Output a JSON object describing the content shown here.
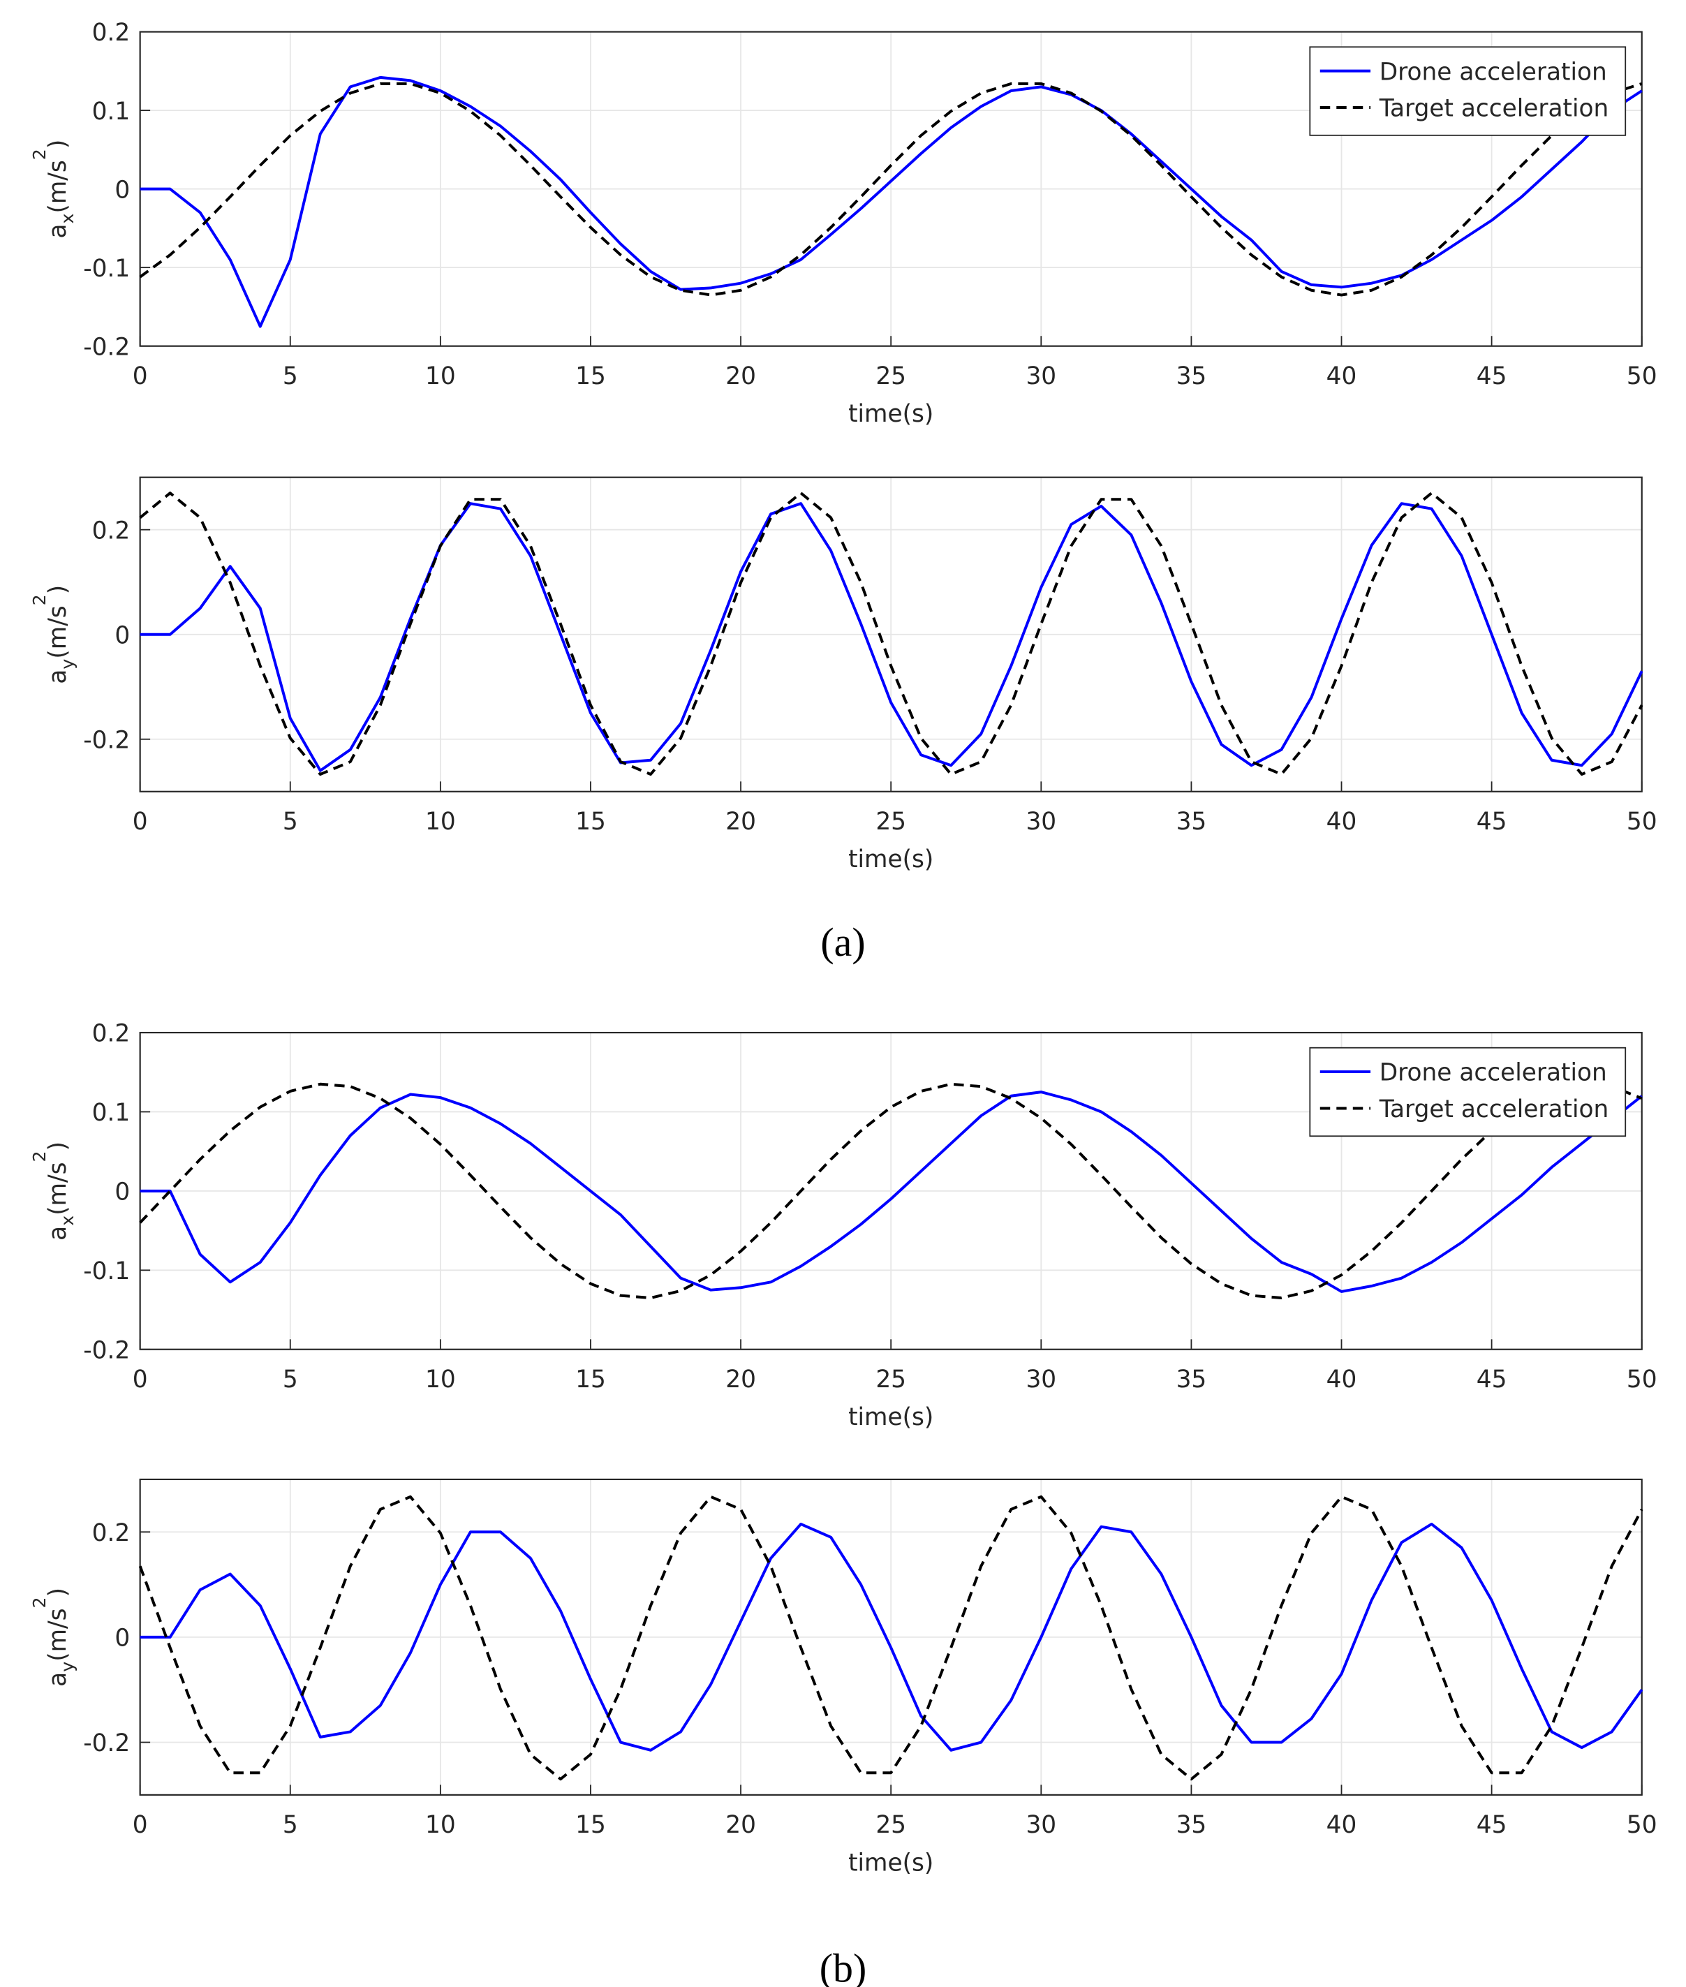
{
  "captions": [
    "(a)",
    "(b)"
  ],
  "chart_data": [
    {
      "type": "line",
      "xlabel": "time(s)",
      "ylabel": [
        {
          "text": "a"
        },
        {
          "text": "x",
          "shift": "sub"
        },
        {
          "text": "(m/s"
        },
        {
          "text": "2",
          "shift": "sup"
        },
        {
          "text": ")"
        }
      ],
      "x": [
        0,
        1,
        2,
        3,
        4,
        5,
        6,
        7,
        8,
        9,
        10,
        11,
        12,
        13,
        14,
        15,
        16,
        17,
        18,
        19,
        20,
        21,
        22,
        23,
        24,
        25,
        26,
        27,
        28,
        29,
        30,
        31,
        32,
        33,
        34,
        35,
        36,
        37,
        38,
        39,
        40,
        41,
        42,
        43,
        44,
        45,
        46,
        47,
        48,
        49,
        50
      ],
      "series": [
        {
          "name": "Drone acceleration",
          "color": "#0000ff",
          "line_style": "solid",
          "values": [
            0,
            0,
            -0.03,
            -0.09,
            -0.175,
            -0.09,
            0.07,
            0.13,
            0.142,
            0.138,
            0.125,
            0.105,
            0.08,
            0.048,
            0.012,
            -0.03,
            -0.07,
            -0.105,
            -0.128,
            -0.126,
            -0.12,
            -0.108,
            -0.09,
            -0.058,
            -0.025,
            0.01,
            0.045,
            0.078,
            0.105,
            0.125,
            0.13,
            0.12,
            0.1,
            0.07,
            0.035,
            0,
            -0.035,
            -0.065,
            -0.105,
            -0.122,
            -0.125,
            -0.12,
            -0.11,
            -0.09,
            -0.065,
            -0.04,
            -0.01,
            0.025,
            0.06,
            0.1,
            0.125
          ]
        },
        {
          "name": "Target acceleration",
          "color": "#000000",
          "line_style": "dashed",
          "values": [
            -0.112,
            -0.084,
            -0.049,
            -0.01,
            0.03,
            0.068,
            0.099,
            0.122,
            0.134,
            0.134,
            0.122,
            0.099,
            0.068,
            0.03,
            -0.01,
            -0.049,
            -0.084,
            -0.112,
            -0.129,
            -0.135,
            -0.129,
            -0.112,
            -0.084,
            -0.049,
            -0.01,
            0.03,
            0.068,
            0.099,
            0.122,
            0.134,
            0.134,
            0.122,
            0.099,
            0.068,
            0.03,
            -0.01,
            -0.049,
            -0.084,
            -0.112,
            -0.129,
            -0.135,
            -0.129,
            -0.112,
            -0.084,
            -0.049,
            -0.01,
            0.03,
            0.068,
            0.099,
            0.122,
            0.134
          ]
        }
      ],
      "xlim": [
        0,
        50
      ],
      "xticks": [
        0,
        5,
        10,
        15,
        20,
        25,
        30,
        35,
        40,
        45,
        50
      ],
      "ylim": [
        -0.2,
        0.2
      ],
      "yticks": [
        -0.2,
        -0.1,
        0,
        0.1,
        0.2
      ],
      "grid": true,
      "legend": "northeast"
    },
    {
      "type": "line",
      "xlabel": "time(s)",
      "ylabel": [
        {
          "text": "a"
        },
        {
          "text": "y",
          "shift": "sub"
        },
        {
          "text": "(m/s"
        },
        {
          "text": "2",
          "shift": "sup"
        },
        {
          "text": ")"
        }
      ],
      "x": [
        0,
        1,
        2,
        3,
        4,
        5,
        6,
        7,
        8,
        9,
        10,
        11,
        12,
        13,
        14,
        15,
        16,
        17,
        18,
        19,
        20,
        21,
        22,
        23,
        24,
        25,
        26,
        27,
        28,
        29,
        30,
        31,
        32,
        33,
        34,
        35,
        36,
        37,
        38,
        39,
        40,
        41,
        42,
        43,
        44,
        45,
        46,
        47,
        48,
        49,
        50
      ],
      "series": [
        {
          "color": "#0000ff",
          "line_style": "solid",
          "values": [
            0,
            0,
            0.05,
            0.13,
            0.05,
            -0.16,
            -0.26,
            -0.22,
            -0.12,
            0.03,
            0.17,
            0.25,
            0.24,
            0.15,
            0,
            -0.15,
            -0.245,
            -0.24,
            -0.17,
            -0.03,
            0.12,
            0.23,
            0.25,
            0.16,
            0.02,
            -0.13,
            -0.23,
            -0.25,
            -0.19,
            -0.06,
            0.09,
            0.21,
            0.245,
            0.19,
            0.06,
            -0.09,
            -0.21,
            -0.25,
            -0.22,
            -0.12,
            0.03,
            0.17,
            0.25,
            0.24,
            0.15,
            0,
            -0.15,
            -0.24,
            -0.25,
            -0.19,
            -0.07
          ]
        },
        {
          "color": "#000000",
          "line_style": "dashed",
          "values": [
            0.223,
            0.27,
            0.223,
            0.099,
            -0.06,
            -0.198,
            -0.267,
            -0.243,
            -0.135,
            0.02,
            0.169,
            0.258,
            0.258,
            0.169,
            0.02,
            -0.135,
            -0.243,
            -0.267,
            -0.198,
            -0.06,
            0.099,
            0.223,
            0.27,
            0.223,
            0.099,
            -0.06,
            -0.198,
            -0.267,
            -0.243,
            -0.135,
            0.02,
            0.169,
            0.258,
            0.258,
            0.169,
            0.02,
            -0.135,
            -0.243,
            -0.267,
            -0.198,
            -0.06,
            0.099,
            0.223,
            0.27,
            0.223,
            0.099,
            -0.06,
            -0.198,
            -0.267,
            -0.243,
            -0.135
          ]
        }
      ],
      "xlim": [
        0,
        50
      ],
      "xticks": [
        0,
        5,
        10,
        15,
        20,
        25,
        30,
        35,
        40,
        45,
        50
      ],
      "ylim": [
        -0.3,
        0.3
      ],
      "yticks": [
        -0.2,
        0,
        0.2
      ],
      "grid": true
    },
    {
      "type": "line",
      "xlabel": "time(s)",
      "ylabel": [
        {
          "text": "a"
        },
        {
          "text": "x",
          "shift": "sub"
        },
        {
          "text": "(m/s"
        },
        {
          "text": "2",
          "shift": "sup"
        },
        {
          "text": ")"
        }
      ],
      "x": [
        0,
        1,
        2,
        3,
        4,
        5,
        6,
        7,
        8,
        9,
        10,
        11,
        12,
        13,
        14,
        15,
        16,
        17,
        18,
        19,
        20,
        21,
        22,
        23,
        24,
        25,
        26,
        27,
        28,
        29,
        30,
        31,
        32,
        33,
        34,
        35,
        36,
        37,
        38,
        39,
        40,
        41,
        42,
        43,
        44,
        45,
        46,
        47,
        48,
        49,
        50
      ],
      "series": [
        {
          "name": "Drone acceleration",
          "color": "#0000ff",
          "line_style": "solid",
          "values": [
            0,
            0,
            -0.08,
            -0.115,
            -0.09,
            -0.04,
            0.02,
            0.07,
            0.105,
            0.122,
            0.118,
            0.105,
            0.085,
            0.06,
            0.03,
            0,
            -0.03,
            -0.07,
            -0.11,
            -0.125,
            -0.122,
            -0.115,
            -0.095,
            -0.07,
            -0.042,
            -0.01,
            0.025,
            0.06,
            0.095,
            0.12,
            0.125,
            0.115,
            0.1,
            0.075,
            0.045,
            0.01,
            -0.025,
            -0.06,
            -0.09,
            -0.105,
            -0.127,
            -0.12,
            -0.11,
            -0.09,
            -0.065,
            -0.035,
            -0.005,
            0.03,
            0.06,
            0.09,
            0.12
          ]
        },
        {
          "name": "Target acceleration",
          "color": "#000000",
          "line_style": "dashed",
          "values": [
            -0.04,
            0,
            0.04,
            0.076,
            0.106,
            0.126,
            0.135,
            0.132,
            0.117,
            0.092,
            0.059,
            0.02,
            -0.02,
            -0.059,
            -0.092,
            -0.117,
            -0.132,
            -0.135,
            -0.126,
            -0.106,
            -0.076,
            -0.04,
            0,
            0.04,
            0.076,
            0.106,
            0.126,
            0.135,
            0.132,
            0.117,
            0.092,
            0.059,
            0.02,
            -0.02,
            -0.059,
            -0.092,
            -0.117,
            -0.132,
            -0.135,
            -0.126,
            -0.106,
            -0.076,
            -0.04,
            0,
            0.04,
            0.076,
            0.106,
            0.126,
            0.135,
            0.132,
            0.117
          ]
        }
      ],
      "xlim": [
        0,
        50
      ],
      "xticks": [
        0,
        5,
        10,
        15,
        20,
        25,
        30,
        35,
        40,
        45,
        50
      ],
      "ylim": [
        -0.2,
        0.2
      ],
      "yticks": [
        -0.2,
        -0.1,
        0,
        0.1,
        0.2
      ],
      "grid": true,
      "legend": "northeast"
    },
    {
      "type": "line",
      "xlabel": "time(s)",
      "ylabel": [
        {
          "text": "a"
        },
        {
          "text": "y",
          "shift": "sub"
        },
        {
          "text": "(m/s"
        },
        {
          "text": "2",
          "shift": "sup"
        },
        {
          "text": ")"
        }
      ],
      "x": [
        0,
        1,
        2,
        3,
        4,
        5,
        6,
        7,
        8,
        9,
        10,
        11,
        12,
        13,
        14,
        15,
        16,
        17,
        18,
        19,
        20,
        21,
        22,
        23,
        24,
        25,
        26,
        27,
        28,
        29,
        30,
        31,
        32,
        33,
        34,
        35,
        36,
        37,
        38,
        39,
        40,
        41,
        42,
        43,
        44,
        45,
        46,
        47,
        48,
        49,
        50
      ],
      "series": [
        {
          "color": "#0000ff",
          "line_style": "solid",
          "values": [
            0,
            0,
            0.09,
            0.12,
            0.06,
            -0.06,
            -0.19,
            -0.18,
            -0.13,
            -0.03,
            0.1,
            0.2,
            0.2,
            0.15,
            0.05,
            -0.08,
            -0.2,
            -0.215,
            -0.18,
            -0.09,
            0.03,
            0.15,
            0.215,
            0.19,
            0.1,
            -0.02,
            -0.15,
            -0.215,
            -0.2,
            -0.12,
            0,
            0.13,
            0.21,
            0.2,
            0.12,
            0,
            -0.13,
            -0.2,
            -0.2,
            -0.155,
            -0.07,
            0.07,
            0.18,
            0.215,
            0.17,
            0.07,
            -0.06,
            -0.18,
            -0.21,
            -0.18,
            -0.1
          ]
        },
        {
          "color": "#000000",
          "line_style": "dashed",
          "values": [
            0.135,
            -0.02,
            -0.169,
            -0.258,
            -0.258,
            -0.169,
            -0.02,
            0.135,
            0.243,
            0.267,
            0.198,
            0.06,
            -0.099,
            -0.223,
            -0.27,
            -0.223,
            -0.099,
            0.06,
            0.198,
            0.267,
            0.243,
            0.135,
            -0.02,
            -0.169,
            -0.258,
            -0.258,
            -0.169,
            -0.02,
            0.135,
            0.243,
            0.267,
            0.198,
            0.06,
            -0.099,
            -0.223,
            -0.27,
            -0.223,
            -0.099,
            0.06,
            0.198,
            0.267,
            0.243,
            0.135,
            -0.02,
            -0.169,
            -0.258,
            -0.258,
            -0.169,
            -0.02,
            0.135,
            0.243
          ]
        }
      ],
      "xlim": [
        0,
        50
      ],
      "xticks": [
        0,
        5,
        10,
        15,
        20,
        25,
        30,
        35,
        40,
        45,
        50
      ],
      "ylim": [
        -0.3,
        0.3
      ],
      "yticks": [
        -0.2,
        0,
        0.2
      ],
      "grid": true
    }
  ]
}
